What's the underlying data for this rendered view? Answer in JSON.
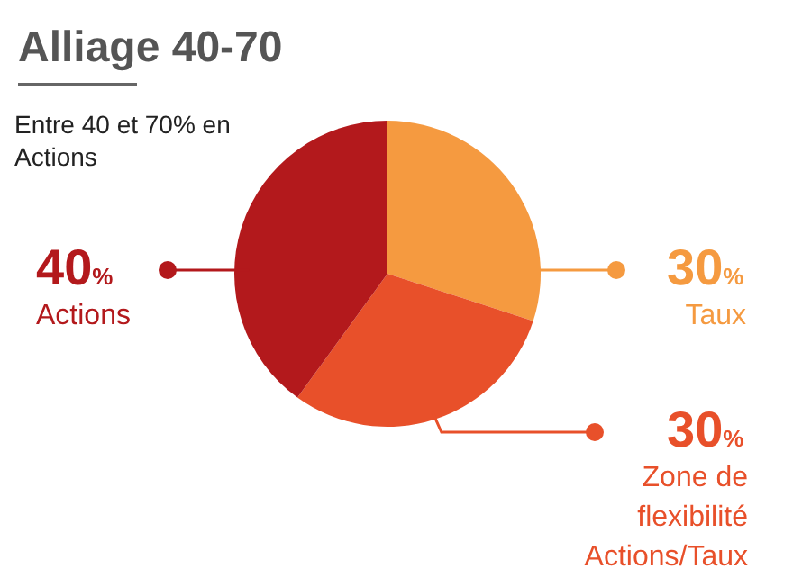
{
  "chart_data": {
    "type": "pie",
    "title": "Alliage 40-70",
    "subtitle": "Entre 40 et 70% en Actions",
    "categories": [
      "Taux",
      "Zone de flexibilité Actions/Taux",
      "Actions"
    ],
    "values": [
      30,
      30,
      40
    ],
    "colors": [
      "#f59a40",
      "#e8502a",
      "#b3191c"
    ],
    "value_labels": [
      "30%",
      "30%",
      "40%"
    ]
  }
}
